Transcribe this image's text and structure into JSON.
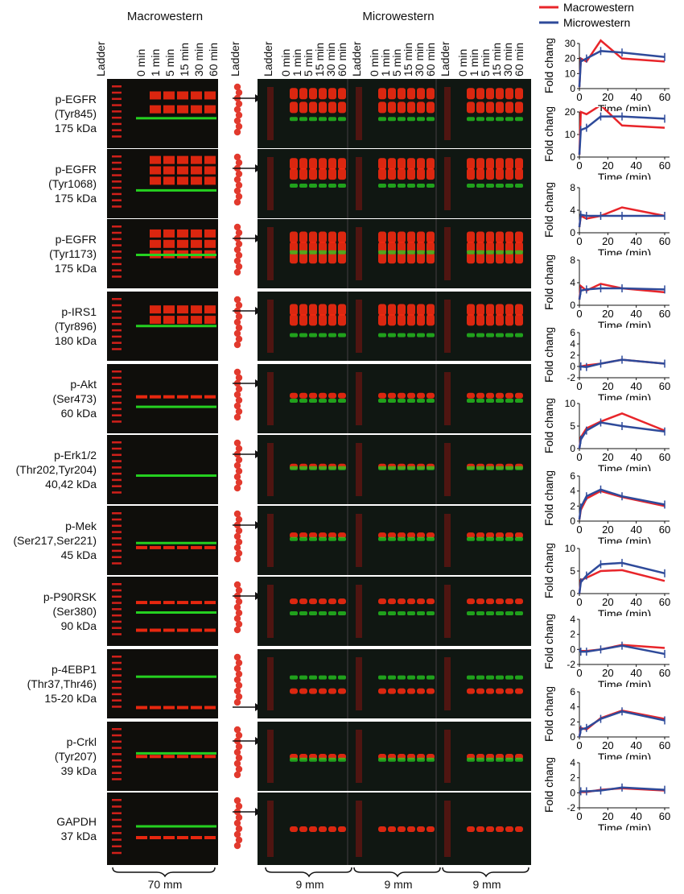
{
  "headers": {
    "macro": "Macrowestern",
    "micro": "Microwestern",
    "ladder": "Ladder",
    "timepoints": [
      "0 min",
      "1 min",
      "5 min",
      "15 min",
      "30 min",
      "60 min"
    ]
  },
  "legend": {
    "macro": "Macrowestern",
    "micro": "Microwestern"
  },
  "colors": {
    "macro": "#e8252a",
    "micro": "#2e4a9a",
    "red_band": "#ff2a10",
    "green_band": "#25d020"
  },
  "rows": [
    {
      "label": "p-EGFR\n(Tyr845)\n175 kDa"
    },
    {
      "label": "p-EGFR\n(Tyr1068)\n175 kDa"
    },
    {
      "label": "p-EGFR\n(Tyr1173)\n175 kDa"
    },
    {
      "label": "p-IRS1\n(Tyr896)\n180 kDa"
    },
    {
      "label": "p-Akt\n(Ser473)\n60 kDa"
    },
    {
      "label": "p-Erk1/2\n(Thr202,Tyr204)\n40,42 kDa"
    },
    {
      "label": "p-Mek\n(Ser217,Ser221)\n45 kDa"
    },
    {
      "label": "p-P90RSK\n(Ser380)\n90 kDa"
    },
    {
      "label": "p-4EBP1\n(Thr37,Thr46)\n15-20 kDa"
    },
    {
      "label": "p-Crkl\n(Tyr207)\n39 kDa"
    },
    {
      "label": "GAPDH\n37 kDa"
    }
  ],
  "scale_labels": {
    "macro": "70 mm",
    "micro": [
      "9 mm",
      "9 mm",
      "9 mm"
    ]
  },
  "chart_data": [
    {
      "type": "line",
      "ylabel": "Fold change",
      "xlabel": "Time (min)",
      "ylim": [
        0,
        30
      ],
      "yticks": [
        0,
        10,
        20,
        30
      ],
      "xticks": [
        0,
        20,
        40,
        60
      ],
      "x": [
        0,
        1,
        5,
        15,
        30,
        60
      ],
      "series": [
        {
          "name": "Macrowestern",
          "values": [
            1,
            20,
            18,
            32,
            20,
            18
          ]
        },
        {
          "name": "Microwestern",
          "values": [
            1,
            18,
            20,
            25,
            24,
            21
          ]
        }
      ]
    },
    {
      "type": "line",
      "ylabel": "Fold change",
      "xlabel": "Time (min)",
      "ylim": [
        0,
        20
      ],
      "yticks": [
        0,
        10,
        20
      ],
      "xticks": [
        0,
        20,
        40,
        60
      ],
      "x": [
        0,
        1,
        5,
        15,
        30,
        60
      ],
      "series": [
        {
          "name": "Macrowestern",
          "values": [
            1,
            20,
            19,
            23,
            14,
            13
          ]
        },
        {
          "name": "Microwestern",
          "values": [
            1,
            12,
            13,
            18,
            18,
            17
          ]
        }
      ]
    },
    {
      "type": "line",
      "ylabel": "Fold change",
      "xlabel": "Time (min)",
      "ylim": [
        0,
        8
      ],
      "yticks": [
        0,
        4,
        8
      ],
      "xticks": [
        0,
        20,
        40,
        60
      ],
      "x": [
        0,
        1,
        5,
        15,
        30,
        60
      ],
      "series": [
        {
          "name": "Macrowestern",
          "values": [
            1,
            3,
            2.5,
            3,
            4.5,
            3
          ]
        },
        {
          "name": "Microwestern",
          "values": [
            1,
            3.2,
            3,
            3,
            3,
            3
          ]
        }
      ]
    },
    {
      "type": "line",
      "ylabel": "Fold change",
      "xlabel": "Time (min)",
      "ylim": [
        0,
        8
      ],
      "yticks": [
        0,
        4,
        8
      ],
      "xticks": [
        0,
        20,
        40,
        60
      ],
      "x": [
        0,
        1,
        5,
        15,
        30,
        60
      ],
      "series": [
        {
          "name": "Macrowestern",
          "values": [
            1,
            3.4,
            2.6,
            3.8,
            3.0,
            2.3
          ]
        },
        {
          "name": "Microwestern",
          "values": [
            1,
            2.6,
            2.8,
            3.0,
            3.0,
            2.8
          ]
        }
      ]
    },
    {
      "type": "line",
      "ylabel": "Fold change",
      "xlabel": "Time (min)",
      "ylim": [
        -2,
        6
      ],
      "yticks": [
        -2,
        0,
        2,
        4,
        6
      ],
      "xticks": [
        0,
        20,
        40,
        60
      ],
      "x": [
        0,
        1,
        5,
        15,
        30,
        60
      ],
      "series": [
        {
          "name": "Macrowestern",
          "values": [
            0,
            0,
            0.2,
            0.5,
            1.2,
            0.5
          ]
        },
        {
          "name": "Microwestern",
          "values": [
            0,
            0,
            -0.1,
            0.5,
            1.2,
            0.5
          ]
        }
      ]
    },
    {
      "type": "line",
      "ylabel": "Fold change",
      "xlabel": "Time (min)",
      "ylim": [
        0,
        10
      ],
      "yticks": [
        0,
        5,
        10
      ],
      "xticks": [
        0,
        20,
        40,
        60
      ],
      "x": [
        0,
        1,
        5,
        15,
        30,
        60
      ],
      "series": [
        {
          "name": "Macrowestern",
          "values": [
            0,
            2.5,
            4.5,
            6.0,
            7.8,
            4.0
          ]
        },
        {
          "name": "Microwestern",
          "values": [
            0,
            2.0,
            4.0,
            5.8,
            5.0,
            3.8
          ]
        }
      ]
    },
    {
      "type": "line",
      "ylabel": "Fold change",
      "xlabel": "Time (min)",
      "ylim": [
        0,
        6
      ],
      "yticks": [
        0,
        2,
        4,
        6
      ],
      "xticks": [
        0,
        20,
        40,
        60
      ],
      "x": [
        0,
        1,
        5,
        15,
        30,
        60
      ],
      "series": [
        {
          "name": "Macrowestern",
          "values": [
            0.2,
            1.5,
            3.0,
            4.0,
            3.2,
            2.0
          ]
        },
        {
          "name": "Microwestern",
          "values": [
            0.2,
            1.8,
            3.3,
            4.2,
            3.3,
            2.2
          ]
        }
      ]
    },
    {
      "type": "line",
      "ylabel": "Fold change",
      "xlabel": "Time (min)",
      "ylim": [
        0,
        10
      ],
      "yticks": [
        0,
        5,
        10
      ],
      "xticks": [
        0,
        20,
        40,
        60
      ],
      "x": [
        0,
        1,
        5,
        15,
        30,
        60
      ],
      "series": [
        {
          "name": "Macrowestern",
          "values": [
            0,
            3.0,
            3.5,
            5.0,
            5.2,
            2.8
          ]
        },
        {
          "name": "Microwestern",
          "values": [
            0,
            2.5,
            4.0,
            6.5,
            6.8,
            4.5
          ]
        }
      ]
    },
    {
      "type": "line",
      "ylabel": "Fold change",
      "xlabel": "Time (min)",
      "ylim": [
        -2,
        4
      ],
      "yticks": [
        -2,
        0,
        2,
        4
      ],
      "xticks": [
        0,
        20,
        40,
        60
      ],
      "x": [
        0,
        1,
        5,
        15,
        30,
        60
      ],
      "series": [
        {
          "name": "Macrowestern",
          "values": [
            0,
            -0.2,
            -0.2,
            0,
            0.6,
            0.2
          ]
        },
        {
          "name": "Microwestern",
          "values": [
            0,
            -0.3,
            -0.3,
            0,
            0.5,
            -0.6
          ]
        }
      ]
    },
    {
      "type": "line",
      "ylabel": "Fold change",
      "xlabel": "Time (min)",
      "ylim": [
        0,
        6
      ],
      "yticks": [
        0,
        2,
        4,
        6
      ],
      "xticks": [
        0,
        20,
        40,
        60
      ],
      "x": [
        0,
        1,
        5,
        15,
        30,
        60
      ],
      "series": [
        {
          "name": "Macrowestern",
          "values": [
            0,
            1.2,
            1.0,
            2.5,
            3.5,
            2.4
          ]
        },
        {
          "name": "Microwestern",
          "values": [
            0,
            1.0,
            1.2,
            2.4,
            3.4,
            2.2
          ]
        }
      ]
    },
    {
      "type": "line",
      "ylabel": "Fold change",
      "xlabel": "Time (min)",
      "ylim": [
        -2,
        4
      ],
      "yticks": [
        -2,
        0,
        2,
        4
      ],
      "xticks": [
        0,
        20,
        40,
        60
      ],
      "x": [
        0,
        1,
        5,
        15,
        30,
        60
      ],
      "series": [
        {
          "name": "Macrowestern",
          "values": [
            0,
            0.1,
            0.1,
            0.4,
            0.6,
            0.3
          ]
        },
        {
          "name": "Microwestern",
          "values": [
            0,
            0.2,
            0.2,
            0.3,
            0.7,
            0.4
          ]
        }
      ]
    }
  ]
}
